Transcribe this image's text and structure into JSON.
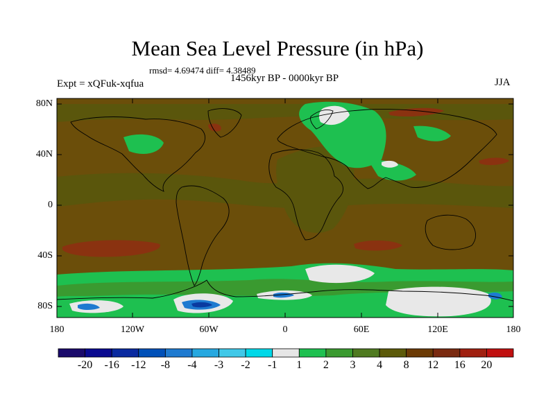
{
  "title": "Mean Sea Level Pressure (in hPa)",
  "stats": "rmsd= 4.69474 diff= 4.38489",
  "subtitle": "1456kyr BP - 0000kyr BP",
  "experiment": "Expt = xQFuk-xqfua",
  "season": "JJA",
  "axes": {
    "y_labels": [
      "80N",
      "40N",
      "0",
      "40S",
      "80S"
    ],
    "x_labels": [
      "180",
      "120W",
      "60W",
      "0",
      "60E",
      "120E",
      "180"
    ]
  },
  "colorbar": {
    "colors": [
      "#1a0a6b",
      "#0a0a90",
      "#0a2aa0",
      "#0050b8",
      "#1e7ad0",
      "#26a8e0",
      "#40c8e8",
      "#00d8e8",
      "#e6e6e6",
      "#1ec050",
      "#3a9a30",
      "#4f7a20",
      "#5c5a0a",
      "#6b3a05",
      "#7a2a10",
      "#a02010",
      "#c01010"
    ],
    "labels": [
      "-20",
      "-16",
      "-12",
      "-8",
      "-4",
      "-3",
      "-2",
      "-1",
      "1",
      "2",
      "3",
      "4",
      "8",
      "12",
      "16",
      "20"
    ]
  },
  "fill_colors": {
    "background": "#6b4e0a",
    "land_band": "#5a560c",
    "positive_red": "#8a3210",
    "green": "#1ec050",
    "dark_green": "#3a9a30",
    "white": "#e8e8e8",
    "blue": "#1e7ad0",
    "navy": "#0a3aa0"
  }
}
